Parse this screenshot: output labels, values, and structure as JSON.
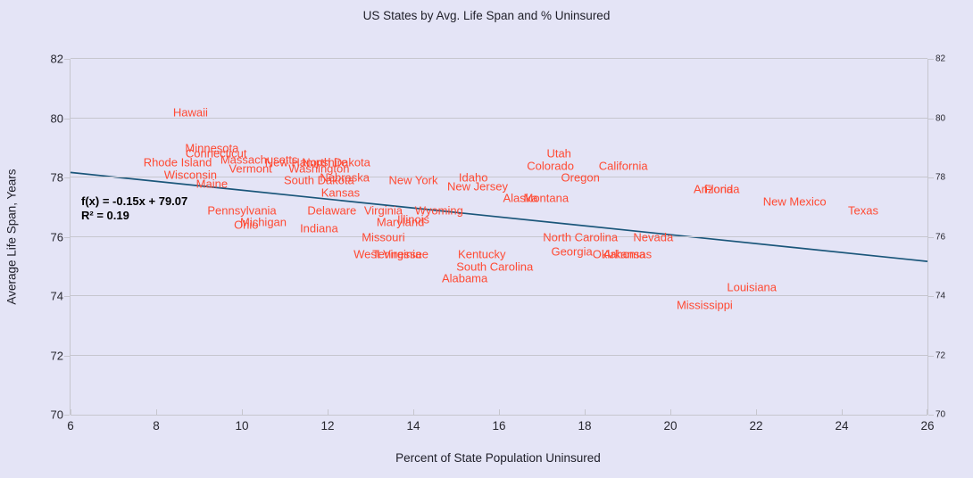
{
  "title": "US States by Avg. Life Span and % Uninsured",
  "colors": {
    "background": "#E4E4F6",
    "grid": "#C6C6CE",
    "axis_text": "#26262E",
    "state_label": "#FF4A33",
    "trend_line": "#1A567A",
    "equation_text": "#000000"
  },
  "chart_data": {
    "type": "scatter",
    "title": "US States by Avg. Life Span and % Uninsured",
    "xlabel": "Percent of State Population Uninsured",
    "ylabel": "Average Life Span, Years",
    "xlim": [
      6,
      26
    ],
    "ylim": [
      70,
      82
    ],
    "x_ticks": [
      6,
      8,
      10,
      12,
      14,
      16,
      18,
      20,
      22,
      24,
      26
    ],
    "y_ticks": [
      70,
      72,
      74,
      76,
      78,
      80,
      82
    ],
    "grid": "horizontal",
    "legend": "none",
    "marker": "none-labels-only",
    "trendline": {
      "slope": -0.15,
      "intercept": 79.07,
      "r2": 0.19,
      "equation_label": "f(x) = -0.15x + 79.07",
      "r2_label": "R² = 0.19"
    },
    "points": [
      {
        "state": "Hawaii",
        "x": 8.8,
        "y": 80.2
      },
      {
        "state": "Minnesota",
        "x": 9.3,
        "y": 79.0
      },
      {
        "state": "Connecticut",
        "x": 9.4,
        "y": 78.8
      },
      {
        "state": "Utah",
        "x": 17.4,
        "y": 78.8
      },
      {
        "state": "Rhode Island",
        "x": 8.5,
        "y": 78.5
      },
      {
        "state": "Massachusetts",
        "x": 10.4,
        "y": 78.6
      },
      {
        "state": "New Hampshire",
        "x": 11.5,
        "y": 78.5
      },
      {
        "state": "North Dakota",
        "x": 12.2,
        "y": 78.5
      },
      {
        "state": "Colorado",
        "x": 17.2,
        "y": 78.4
      },
      {
        "state": "California",
        "x": 18.9,
        "y": 78.4
      },
      {
        "state": "Vermont",
        "x": 10.2,
        "y": 78.3
      },
      {
        "state": "Washington",
        "x": 11.8,
        "y": 78.3
      },
      {
        "state": "Wisconsin",
        "x": 8.8,
        "y": 78.1
      },
      {
        "state": "Nebraska",
        "x": 12.4,
        "y": 78.0
      },
      {
        "state": "Idaho",
        "x": 15.4,
        "y": 78.0
      },
      {
        "state": "Oregon",
        "x": 17.9,
        "y": 78.0
      },
      {
        "state": "South Dakota",
        "x": 11.8,
        "y": 77.9
      },
      {
        "state": "New York",
        "x": 14.0,
        "y": 77.9
      },
      {
        "state": "Maine",
        "x": 9.3,
        "y": 77.8
      },
      {
        "state": "New Jersey",
        "x": 15.5,
        "y": 77.7
      },
      {
        "state": "Arizona",
        "x": 21.0,
        "y": 77.6
      },
      {
        "state": "Florida",
        "x": 21.2,
        "y": 77.6
      },
      {
        "state": "Kansas",
        "x": 12.3,
        "y": 77.5
      },
      {
        "state": "Alaska",
        "x": 16.5,
        "y": 77.3
      },
      {
        "state": "Montana",
        "x": 17.1,
        "y": 77.3
      },
      {
        "state": "New Mexico",
        "x": 22.9,
        "y": 77.2
      },
      {
        "state": "Pennsylvania",
        "x": 10.0,
        "y": 76.9
      },
      {
        "state": "Delaware",
        "x": 12.1,
        "y": 76.9
      },
      {
        "state": "Virginia",
        "x": 13.3,
        "y": 76.9
      },
      {
        "state": "Wyoming",
        "x": 14.6,
        "y": 76.9
      },
      {
        "state": "Texas",
        "x": 24.5,
        "y": 76.9
      },
      {
        "state": "Illinois",
        "x": 14.0,
        "y": 76.6
      },
      {
        "state": "Michigan",
        "x": 10.5,
        "y": 76.5
      },
      {
        "state": "Maryland",
        "x": 13.7,
        "y": 76.5
      },
      {
        "state": "Ohio",
        "x": 10.1,
        "y": 76.4
      },
      {
        "state": "Indiana",
        "x": 11.8,
        "y": 76.3
      },
      {
        "state": "Missouri",
        "x": 13.3,
        "y": 76.0
      },
      {
        "state": "North Carolina",
        "x": 17.9,
        "y": 76.0
      },
      {
        "state": "Nevada",
        "x": 19.6,
        "y": 76.0
      },
      {
        "state": "Georgia",
        "x": 17.7,
        "y": 75.5
      },
      {
        "state": "West Virginia",
        "x": 13.4,
        "y": 75.4
      },
      {
        "state": "Tennessee",
        "x": 13.7,
        "y": 75.4
      },
      {
        "state": "Kentucky",
        "x": 15.6,
        "y": 75.4
      },
      {
        "state": "Oklahoma",
        "x": 18.8,
        "y": 75.4
      },
      {
        "state": "Arkansas",
        "x": 19.0,
        "y": 75.4
      },
      {
        "state": "South Carolina",
        "x": 15.9,
        "y": 75.0
      },
      {
        "state": "Alabama",
        "x": 15.2,
        "y": 74.6
      },
      {
        "state": "Louisiana",
        "x": 21.9,
        "y": 74.3
      },
      {
        "state": "Mississippi",
        "x": 20.8,
        "y": 73.7
      }
    ]
  }
}
